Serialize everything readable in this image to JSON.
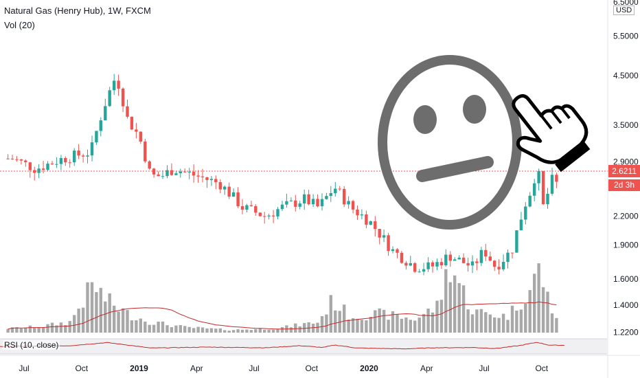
{
  "header": {
    "title": "Natural Gas (Henry Hub), 1W, FXCM",
    "volume_label": "Vol (20)",
    "rsi_label": "RSI (10, close)"
  },
  "price_axis": {
    "currency": "USD",
    "top_tick": "6.5000",
    "current_price_tag": "2.6211",
    "time_remaining_tag": "2d 3h"
  },
  "colors": {
    "up": "#26a69a",
    "down": "#ef5350",
    "volume": "#a8a8a8",
    "volume_ma": "#c62828",
    "rsi_line": "#c62828",
    "emoji": "#6d6d6d"
  },
  "icons": [
    "neutral-face-icon",
    "pointing-hand-icon"
  ],
  "chart_data": {
    "type": "candlestick",
    "title": "Natural Gas (Henry Hub), 1W, FXCM",
    "scale": "log",
    "ylim": [
      1.1,
      6.5
    ],
    "y_ticks": [
      "5.5000",
      "4.5000",
      "3.5000",
      "2.9000",
      "2.2000",
      "1.9000",
      "1.6000",
      "1.4000",
      "1.2200"
    ],
    "x_ticks": [
      "Jul",
      "Oct",
      "2019",
      "Apr",
      "Jul",
      "Oct",
      "2020",
      "Apr",
      "Jul",
      "Oct"
    ],
    "current_price": 2.6211,
    "grid": false,
    "close_anchors": [
      [
        2018.45,
        2.95
      ],
      [
        2018.55,
        2.8
      ],
      [
        2018.67,
        2.95
      ],
      [
        2018.79,
        3.05
      ],
      [
        2018.86,
        4.0
      ],
      [
        2018.9,
        4.5
      ],
      [
        2018.95,
        3.6
      ],
      [
        2019.0,
        3.3
      ],
      [
        2019.05,
        2.7
      ],
      [
        2019.1,
        2.7
      ],
      [
        2019.15,
        2.8
      ],
      [
        2019.25,
        2.7
      ],
      [
        2019.35,
        2.6
      ],
      [
        2019.45,
        2.3
      ],
      [
        2019.55,
        2.2
      ],
      [
        2019.62,
        2.3
      ],
      [
        2019.72,
        2.4
      ],
      [
        2019.78,
        2.3
      ],
      [
        2019.85,
        2.55
      ],
      [
        2019.92,
        2.3
      ],
      [
        2020.0,
        2.15
      ],
      [
        2020.1,
        1.85
      ],
      [
        2020.2,
        1.7
      ],
      [
        2020.27,
        1.7
      ],
      [
        2020.35,
        1.8
      ],
      [
        2020.45,
        1.7
      ],
      [
        2020.5,
        1.85
      ],
      [
        2020.55,
        1.7
      ],
      [
        2020.62,
        1.85
      ],
      [
        2020.68,
        2.35
      ],
      [
        2020.71,
        2.55
      ],
      [
        2020.73,
        2.85
      ],
      [
        2020.76,
        2.25
      ],
      [
        2020.79,
        2.65
      ],
      [
        2020.81,
        2.62
      ]
    ],
    "volume_anchors": [
      [
        2018.45,
        0.08
      ],
      [
        2018.58,
        0.12
      ],
      [
        2018.7,
        0.2
      ],
      [
        2018.8,
        0.9
      ],
      [
        2018.86,
        0.6
      ],
      [
        2018.95,
        0.35
      ],
      [
        2019.05,
        0.2
      ],
      [
        2019.2,
        0.1
      ],
      [
        2019.4,
        0.05
      ],
      [
        2019.6,
        0.08
      ],
      [
        2019.78,
        0.2
      ],
      [
        2019.84,
        0.6
      ],
      [
        2019.92,
        0.3
      ],
      [
        2020.05,
        0.35
      ],
      [
        2020.2,
        0.25
      ],
      [
        2020.3,
        0.5
      ],
      [
        2020.35,
        1.3
      ],
      [
        2020.45,
        0.4
      ],
      [
        2020.6,
        0.3
      ],
      [
        2020.7,
        0.8
      ],
      [
        2020.74,
        1.2
      ],
      [
        2020.78,
        0.6
      ],
      [
        2020.81,
        0.3
      ]
    ],
    "rsi_anchors": [
      [
        2018.45,
        50
      ],
      [
        2018.7,
        55
      ],
      [
        2018.86,
        78
      ],
      [
        2018.95,
        60
      ],
      [
        2019.05,
        38
      ],
      [
        2019.3,
        45
      ],
      [
        2019.55,
        40
      ],
      [
        2019.7,
        55
      ],
      [
        2019.8,
        42
      ],
      [
        2019.85,
        60
      ],
      [
        2019.95,
        38
      ],
      [
        2020.15,
        32
      ],
      [
        2020.28,
        40
      ],
      [
        2020.45,
        42
      ],
      [
        2020.55,
        35
      ],
      [
        2020.65,
        55
      ],
      [
        2020.73,
        80
      ],
      [
        2020.78,
        60
      ],
      [
        2020.81,
        58
      ]
    ],
    "series": [
      {
        "name": "Vol (20)"
      },
      {
        "name": "RSI (10, close)"
      }
    ]
  }
}
